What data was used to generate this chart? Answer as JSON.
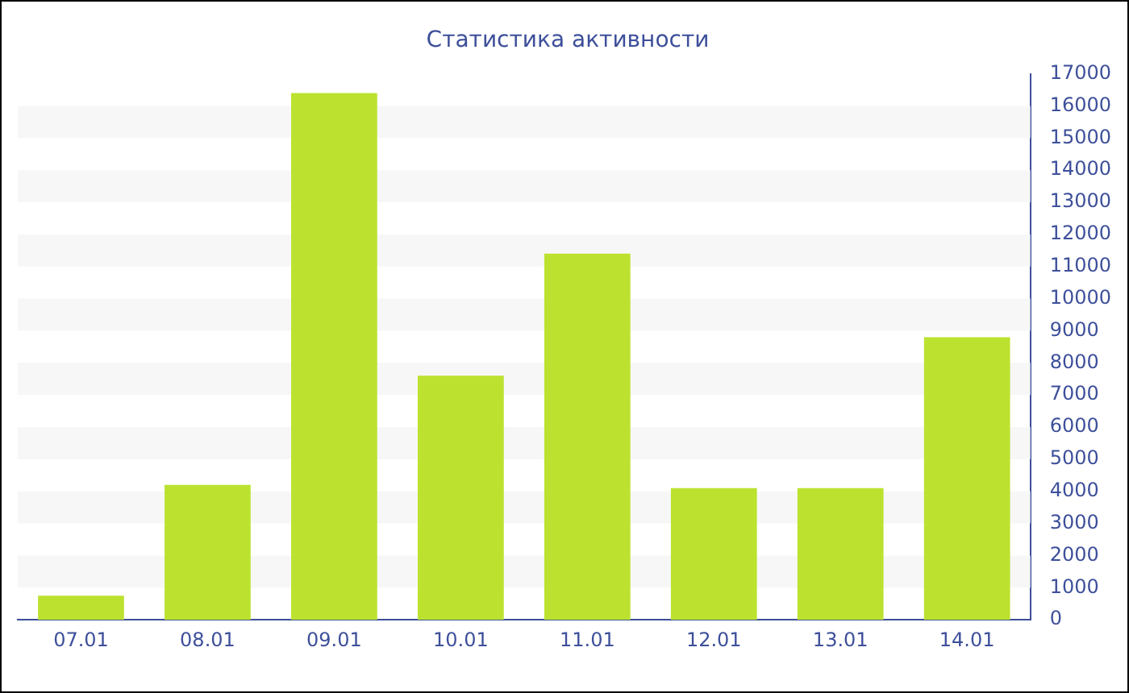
{
  "chart_data": {
    "type": "bar",
    "title": "Статистика активности",
    "categories": [
      "07.01",
      "08.01",
      "09.01",
      "10.01",
      "11.01",
      "12.01",
      "13.01",
      "14.01"
    ],
    "values": [
      750,
      4200,
      16400,
      7600,
      11400,
      4100,
      4100,
      8800
    ],
    "color": "#bce22f",
    "ylim": [
      0,
      17000
    ],
    "yticks": [
      0,
      1000,
      2000,
      3000,
      4000,
      5000,
      6000,
      7000,
      8000,
      9000,
      10000,
      11000,
      12000,
      13000,
      14000,
      15000,
      16000,
      17000
    ],
    "legend": false
  }
}
